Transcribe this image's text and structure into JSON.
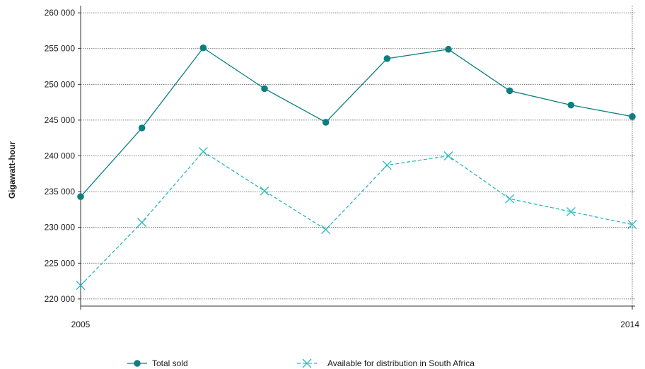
{
  "chart_data": {
    "type": "line",
    "title": "",
    "xlabel": "",
    "ylabel": "Gigawatt-hour",
    "x": [
      2005,
      2006,
      2007,
      2008,
      2009,
      2010,
      2011,
      2012,
      2013,
      2014
    ],
    "x_tick_labels": [
      "2005",
      "2014"
    ],
    "ylim": [
      219000,
      261000
    ],
    "y_ticks": [
      220000,
      225000,
      230000,
      235000,
      240000,
      245000,
      250000,
      255000,
      260000
    ],
    "y_tick_labels": [
      "220 000",
      "225 000",
      "230 000",
      "235 000",
      "240 000",
      "245 000",
      "250 000",
      "255 000",
      "260 000"
    ],
    "grid": "horizontal dotted",
    "legend_position": "bottom",
    "series": [
      {
        "name": "Total sold",
        "color": "#0b7f80",
        "marker": "circle",
        "line_style": "solid",
        "values": [
          234300,
          243900,
          255100,
          249400,
          244700,
          253600,
          254900,
          249100,
          247100,
          245500
        ]
      },
      {
        "name": "Available for distribution in South Africa",
        "color": "#2ab7bd",
        "marker": "x",
        "line_style": "dashed",
        "values": [
          221900,
          230700,
          240600,
          235100,
          229700,
          238700,
          240000,
          234000,
          232200,
          230400
        ]
      }
    ]
  }
}
